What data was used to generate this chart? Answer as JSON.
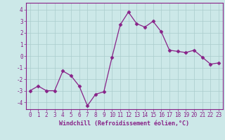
{
  "x": [
    0,
    1,
    2,
    3,
    4,
    5,
    6,
    7,
    8,
    9,
    10,
    11,
    12,
    13,
    14,
    15,
    16,
    17,
    18,
    19,
    20,
    21,
    22,
    23
  ],
  "y": [
    -3.0,
    -2.6,
    -3.0,
    -3.0,
    -1.3,
    -1.7,
    -2.6,
    -4.3,
    -3.3,
    -3.1,
    -0.1,
    2.7,
    3.8,
    2.8,
    2.5,
    3.0,
    2.1,
    0.5,
    0.4,
    0.3,
    0.5,
    -0.1,
    -0.7,
    -0.6
  ],
  "line_color": "#882288",
  "marker": "D",
  "marker_size": 2.5,
  "bg_color": "#cce8e8",
  "grid_color": "#aacccc",
  "xlabel": "Windchill (Refroidissement éolien,°C)",
  "ylabel": "",
  "title": "",
  "xlim": [
    -0.5,
    23.5
  ],
  "ylim": [
    -4.6,
    4.6
  ],
  "yticks": [
    -4,
    -3,
    -2,
    -1,
    0,
    1,
    2,
    3,
    4
  ],
  "xticks": [
    0,
    1,
    2,
    3,
    4,
    5,
    6,
    7,
    8,
    9,
    10,
    11,
    12,
    13,
    14,
    15,
    16,
    17,
    18,
    19,
    20,
    21,
    22,
    23
  ],
  "tick_fontsize": 5.5,
  "xlabel_fontsize": 6.0
}
